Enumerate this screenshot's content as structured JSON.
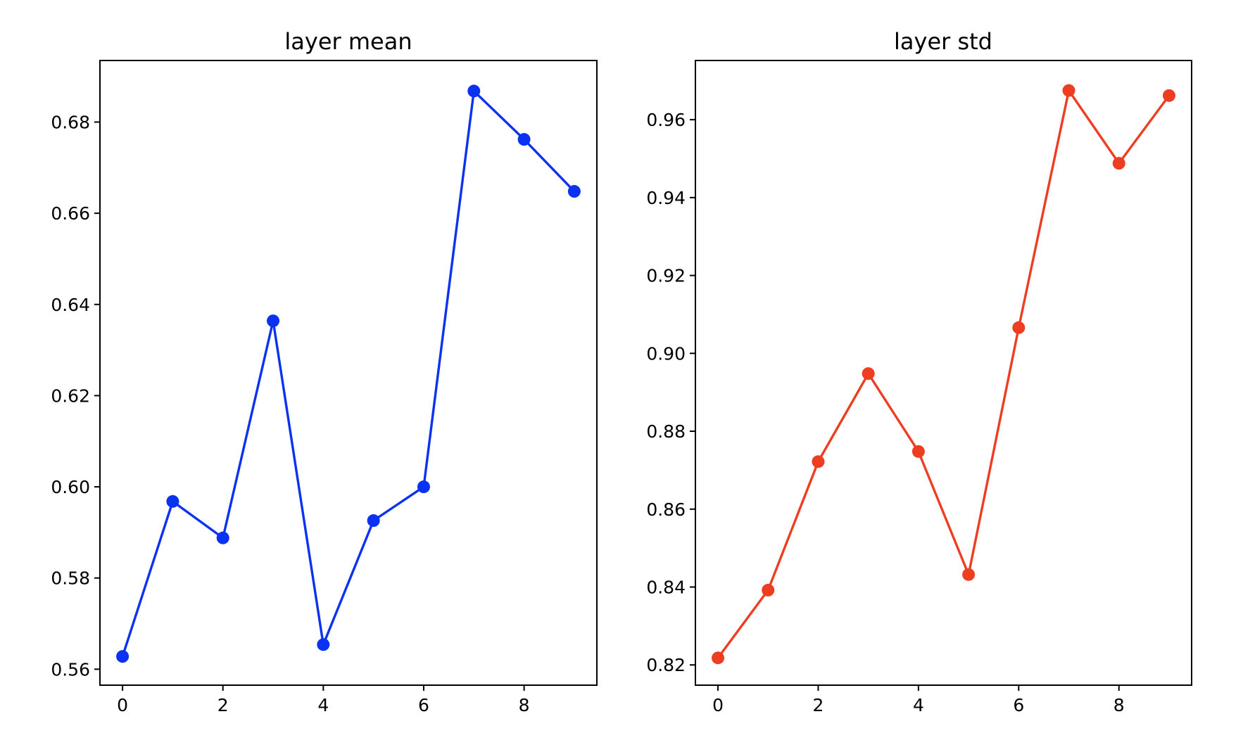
{
  "chart_data": [
    {
      "type": "line",
      "title": "layer mean",
      "xlabel": "",
      "ylabel": "",
      "xlim": [
        -0.45,
        9.45
      ],
      "ylim": [
        0.5565,
        0.6935
      ],
      "xticks": [
        0,
        2,
        4,
        6,
        8
      ],
      "xtick_labels": [
        "0",
        "2",
        "4",
        "6",
        "8"
      ],
      "yticks": [
        0.56,
        0.58,
        0.6,
        0.62,
        0.64,
        0.66,
        0.68
      ],
      "ytick_labels": [
        "0.56",
        "0.58",
        "0.60",
        "0.62",
        "0.64",
        "0.66",
        "0.68"
      ],
      "grid": false,
      "color": "#0a32f0",
      "marker": "circle",
      "x": [
        0,
        1,
        2,
        3,
        4,
        5,
        6,
        7,
        8,
        9
      ],
      "values": [
        0.5628,
        0.5968,
        0.5888,
        0.6364,
        0.5654,
        0.5926,
        0.6,
        0.6868,
        0.6762,
        0.6648
      ]
    },
    {
      "type": "line",
      "title": "layer std",
      "xlabel": "",
      "ylabel": "",
      "xlim": [
        -0.45,
        9.45
      ],
      "ylim": [
        0.8148,
        0.9752
      ],
      "xticks": [
        0,
        2,
        4,
        6,
        8
      ],
      "xtick_labels": [
        "0",
        "2",
        "4",
        "6",
        "8"
      ],
      "yticks": [
        0.82,
        0.84,
        0.86,
        0.88,
        0.9,
        0.92,
        0.94,
        0.96
      ],
      "ytick_labels": [
        "0.82",
        "0.84",
        "0.86",
        "0.88",
        "0.90",
        "0.92",
        "0.94",
        "0.96"
      ],
      "grid": false,
      "color": "#ee3e22",
      "marker": "circle",
      "x": [
        0,
        1,
        2,
        3,
        4,
        5,
        6,
        7,
        8,
        9
      ],
      "values": [
        0.8218,
        0.8392,
        0.8722,
        0.8948,
        0.8748,
        0.8432,
        0.9066,
        0.9675,
        0.9488,
        0.9662
      ]
    }
  ]
}
